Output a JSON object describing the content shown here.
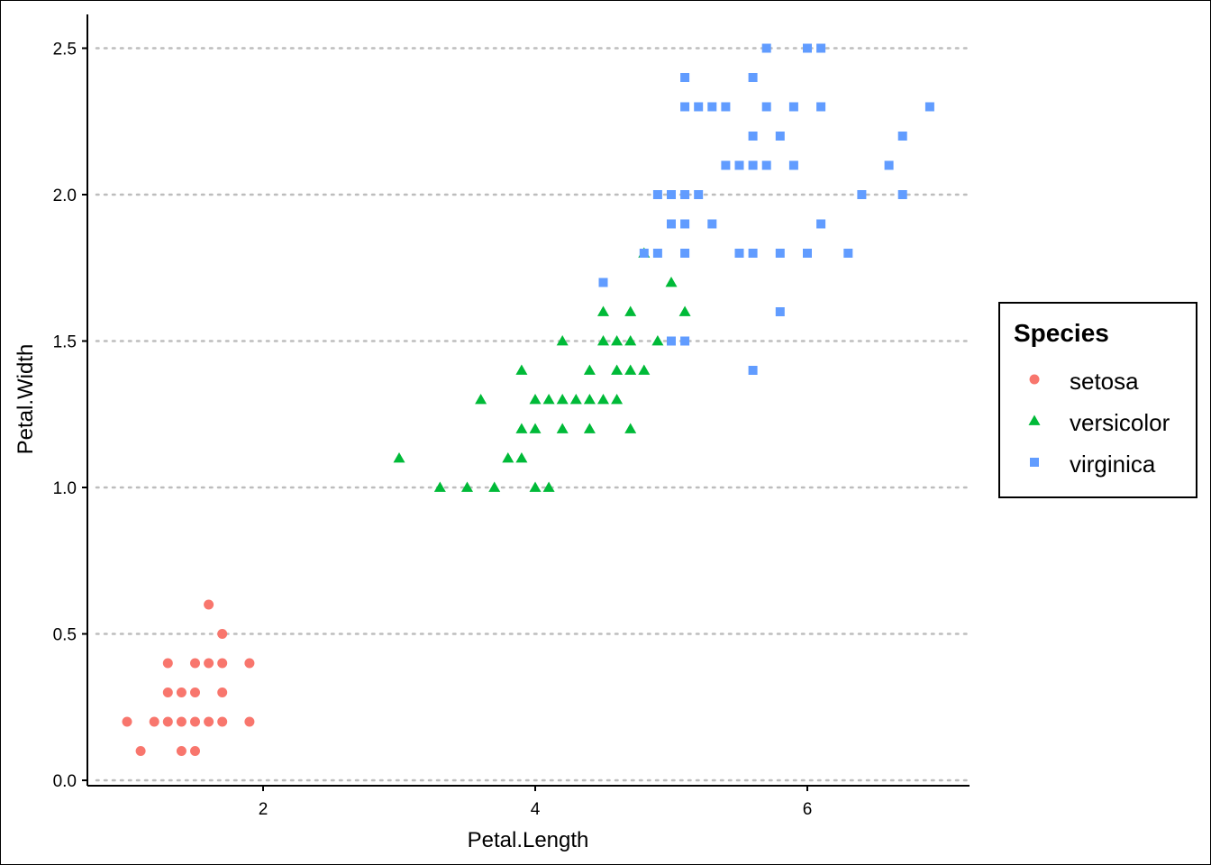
{
  "chart_data": {
    "type": "scatter",
    "xlabel": "Petal.Length",
    "ylabel": "Petal.Width",
    "xlim": [
      0.7,
      7.2
    ],
    "ylim": [
      0.0,
      2.5
    ],
    "x_ticks": [
      2,
      4,
      6
    ],
    "x_tick_labels": [
      "2",
      "4",
      "6"
    ],
    "y_ticks": [
      0.0,
      0.5,
      1.0,
      1.5,
      2.0,
      2.5
    ],
    "y_tick_labels": [
      "0.0",
      "0.5",
      "1.0",
      "1.5",
      "2.0",
      "2.5"
    ],
    "grid": "horizontal dotted",
    "legend": {
      "title": "Species",
      "placement": "right"
    },
    "series": [
      {
        "name": "setosa",
        "color": "#F8766D",
        "shape": "circle",
        "points": [
          [
            1.0,
            0.2
          ],
          [
            1.1,
            0.1
          ],
          [
            1.2,
            0.2
          ],
          [
            1.3,
            0.2
          ],
          [
            1.3,
            0.3
          ],
          [
            1.3,
            0.4
          ],
          [
            1.4,
            0.1
          ],
          [
            1.4,
            0.2
          ],
          [
            1.4,
            0.3
          ],
          [
            1.5,
            0.1
          ],
          [
            1.5,
            0.2
          ],
          [
            1.5,
            0.3
          ],
          [
            1.5,
            0.4
          ],
          [
            1.6,
            0.2
          ],
          [
            1.6,
            0.4
          ],
          [
            1.6,
            0.6
          ],
          [
            1.7,
            0.2
          ],
          [
            1.7,
            0.3
          ],
          [
            1.7,
            0.4
          ],
          [
            1.7,
            0.5
          ],
          [
            1.9,
            0.2
          ],
          [
            1.9,
            0.4
          ]
        ]
      },
      {
        "name": "versicolor",
        "color": "#00BA38",
        "shape": "triangle",
        "points": [
          [
            3.0,
            1.1
          ],
          [
            3.3,
            1.0
          ],
          [
            3.5,
            1.0
          ],
          [
            3.6,
            1.3
          ],
          [
            3.7,
            1.0
          ],
          [
            3.8,
            1.1
          ],
          [
            3.9,
            1.1
          ],
          [
            3.9,
            1.2
          ],
          [
            3.9,
            1.4
          ],
          [
            4.0,
            1.0
          ],
          [
            4.0,
            1.2
          ],
          [
            4.0,
            1.3
          ],
          [
            4.1,
            1.0
          ],
          [
            4.1,
            1.3
          ],
          [
            4.2,
            1.2
          ],
          [
            4.2,
            1.3
          ],
          [
            4.2,
            1.5
          ],
          [
            4.3,
            1.3
          ],
          [
            4.4,
            1.2
          ],
          [
            4.4,
            1.3
          ],
          [
            4.4,
            1.4
          ],
          [
            4.5,
            1.3
          ],
          [
            4.5,
            1.5
          ],
          [
            4.5,
            1.6
          ],
          [
            4.6,
            1.3
          ],
          [
            4.6,
            1.4
          ],
          [
            4.6,
            1.5
          ],
          [
            4.7,
            1.2
          ],
          [
            4.7,
            1.4
          ],
          [
            4.7,
            1.5
          ],
          [
            4.7,
            1.6
          ],
          [
            4.8,
            1.4
          ],
          [
            4.8,
            1.8
          ],
          [
            4.9,
            1.5
          ],
          [
            5.0,
            1.7
          ],
          [
            5.1,
            1.6
          ]
        ]
      },
      {
        "name": "virginica",
        "color": "#619CFF",
        "shape": "square",
        "points": [
          [
            4.5,
            1.7
          ],
          [
            4.8,
            1.8
          ],
          [
            4.9,
            1.8
          ],
          [
            4.9,
            2.0
          ],
          [
            5.0,
            1.5
          ],
          [
            5.0,
            1.9
          ],
          [
            5.0,
            2.0
          ],
          [
            5.1,
            1.5
          ],
          [
            5.1,
            1.8
          ],
          [
            5.1,
            1.9
          ],
          [
            5.1,
            2.0
          ],
          [
            5.1,
            2.3
          ],
          [
            5.1,
            2.4
          ],
          [
            5.2,
            2.0
          ],
          [
            5.2,
            2.3
          ],
          [
            5.3,
            1.9
          ],
          [
            5.3,
            2.3
          ],
          [
            5.4,
            2.1
          ],
          [
            5.4,
            2.3
          ],
          [
            5.5,
            1.8
          ],
          [
            5.5,
            2.1
          ],
          [
            5.6,
            1.4
          ],
          [
            5.6,
            1.8
          ],
          [
            5.6,
            2.1
          ],
          [
            5.6,
            2.2
          ],
          [
            5.6,
            2.4
          ],
          [
            5.7,
            2.1
          ],
          [
            5.7,
            2.3
          ],
          [
            5.7,
            2.5
          ],
          [
            5.8,
            1.6
          ],
          [
            5.8,
            1.8
          ],
          [
            5.8,
            2.2
          ],
          [
            5.9,
            2.1
          ],
          [
            5.9,
            2.3
          ],
          [
            6.0,
            1.8
          ],
          [
            6.0,
            2.5
          ],
          [
            6.1,
            1.9
          ],
          [
            6.1,
            2.3
          ],
          [
            6.1,
            2.5
          ],
          [
            6.3,
            1.8
          ],
          [
            6.4,
            2.0
          ],
          [
            6.6,
            2.1
          ],
          [
            6.7,
            2.0
          ],
          [
            6.7,
            2.2
          ],
          [
            6.9,
            2.3
          ]
        ]
      }
    ]
  }
}
